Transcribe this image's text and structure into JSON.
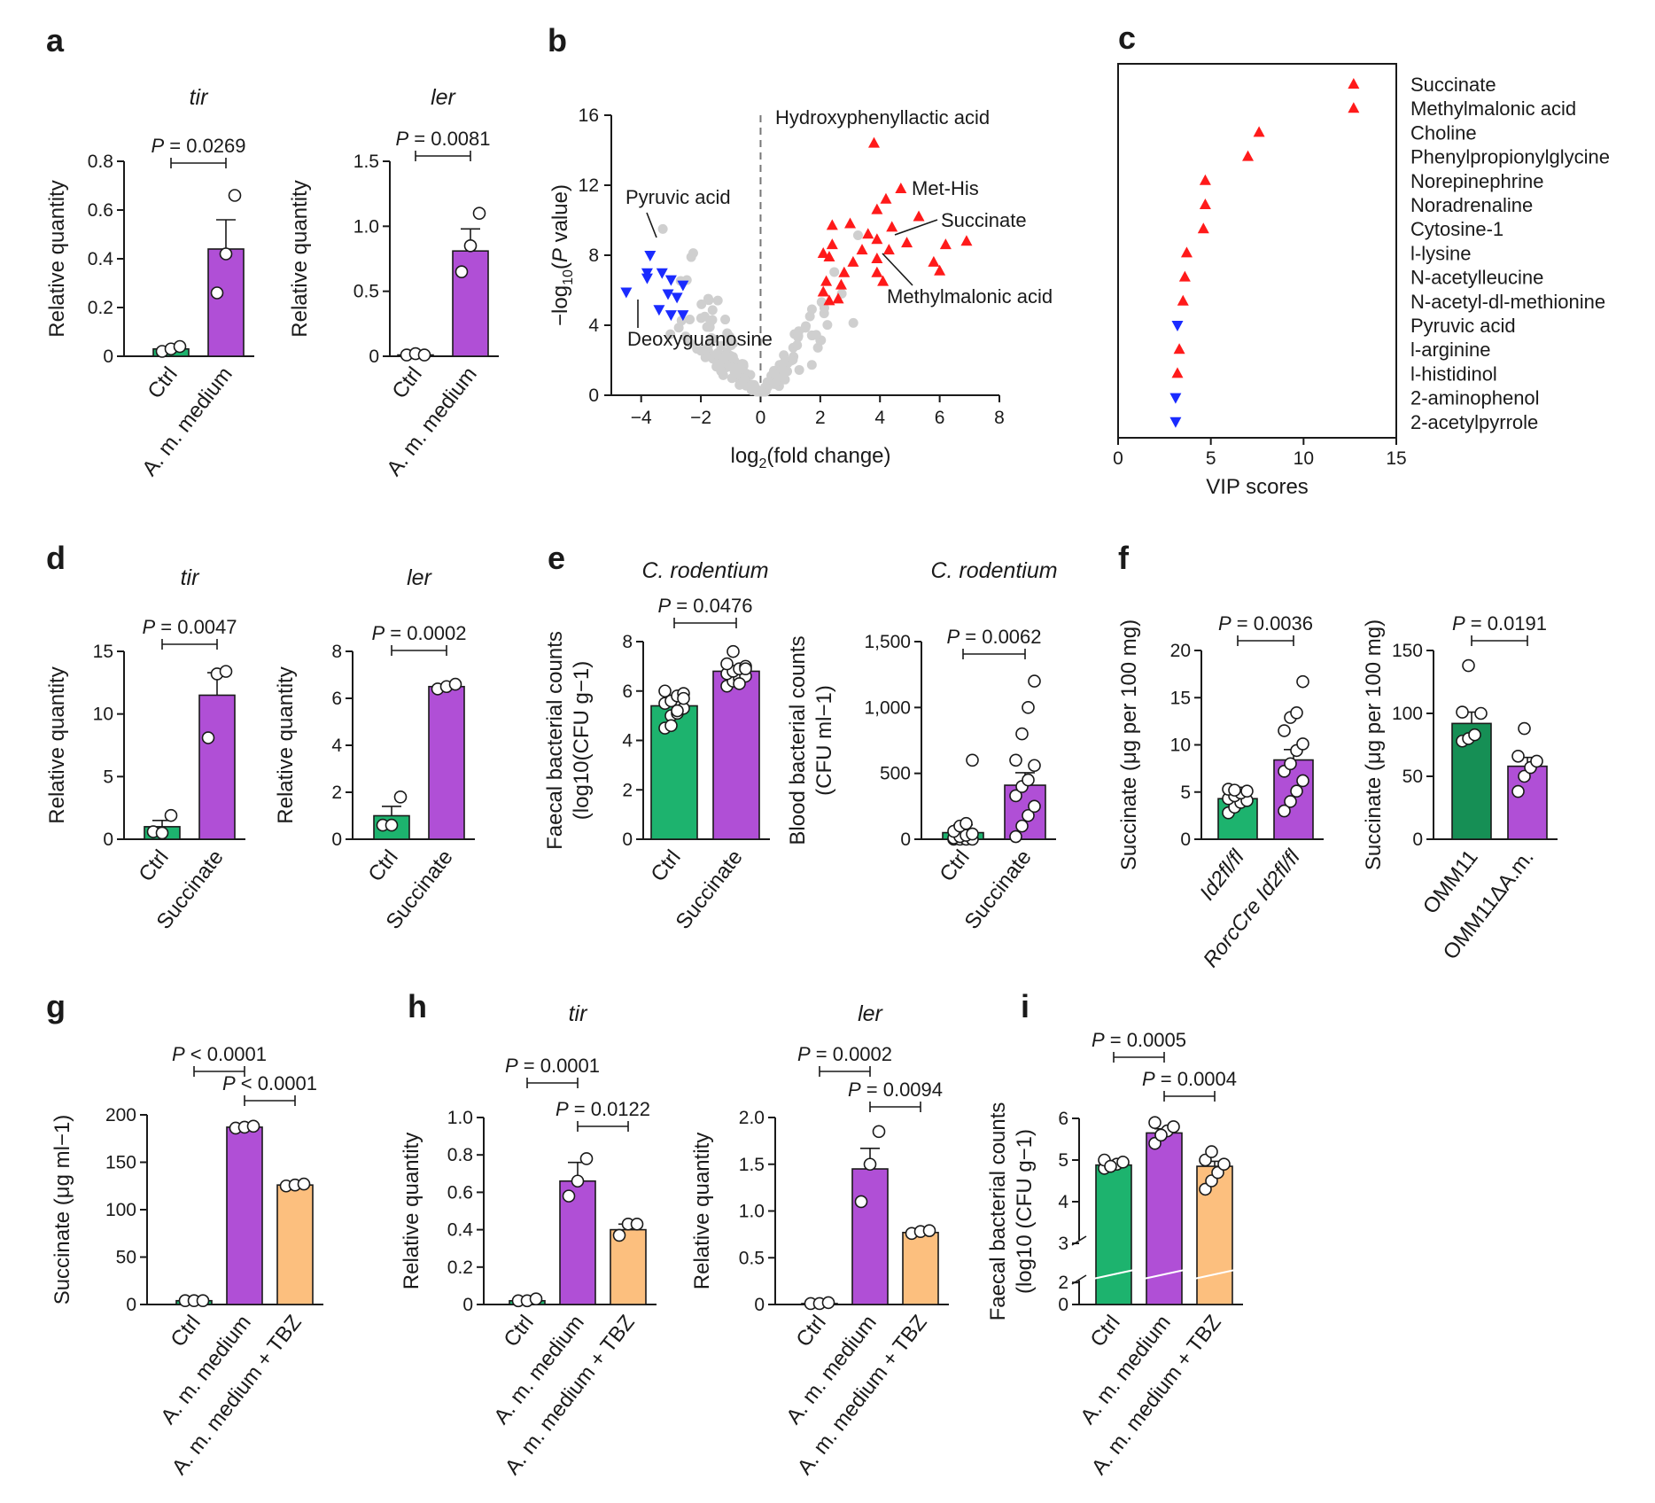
{
  "colors": {
    "green": "#1DB36E",
    "dkgreen": "#168F55",
    "purple": "#B04FD6",
    "orange": "#FCBF7E",
    "red": "#FF1A1A",
    "blue": "#1A2BFF",
    "grey": "#CFCFCF",
    "dash": "#777777"
  },
  "panel_labels": [
    "a",
    "b",
    "c",
    "d",
    "e",
    "f",
    "g",
    "h",
    "i"
  ],
  "chart_data": [
    {
      "id": "a1",
      "type": "bar",
      "panel": "a",
      "title": "tir",
      "title_italic": true,
      "ylabel": "Relative quantity",
      "ylim": [
        0,
        0.8
      ],
      "ticks": [
        0,
        0.2,
        0.4,
        0.6,
        0.8
      ],
      "tick_labels": [
        "0",
        "0.2",
        "0.4",
        "0.6",
        "0.8"
      ],
      "categories": [
        "Ctrl",
        "A. m. medium"
      ],
      "colors": [
        "#1DB36E",
        "#B04FD6"
      ],
      "values": [
        0.03,
        0.44
      ],
      "sem": [
        0.01,
        0.12
      ],
      "points": [
        [
          0.02,
          0.03,
          0.04
        ],
        [
          0.26,
          0.42,
          0.66
        ]
      ],
      "comparisons": [
        {
          "from": 0,
          "to": 1,
          "label": "P = 0.0269"
        }
      ]
    },
    {
      "id": "a2",
      "type": "bar",
      "panel": "a",
      "title": "ler",
      "title_italic": true,
      "ylabel": "Relative quantity",
      "ylim": [
        0,
        1.5
      ],
      "ticks": [
        0,
        0.5,
        1.0,
        1.5
      ],
      "tick_labels": [
        "0",
        "0.5",
        "1.0",
        "1.5"
      ],
      "categories": [
        "Ctrl",
        "A. m. medium"
      ],
      "colors": [
        "#1DB36E",
        "#B04FD6"
      ],
      "values": [
        0.01,
        0.81
      ],
      "sem": [
        0.01,
        0.17
      ],
      "points": [
        [
          0.01,
          0.02,
          0.01
        ],
        [
          0.65,
          0.85,
          1.1
        ]
      ],
      "comparisons": [
        {
          "from": 0,
          "to": 1,
          "label": "P = 0.0081"
        }
      ]
    },
    {
      "id": "b",
      "type": "scatter",
      "panel": "b",
      "xlabel": "log2(fold change)",
      "ylabel": "−log10(P value)",
      "xlim": [
        -5,
        8
      ],
      "ylim": [
        0,
        16
      ],
      "xticks": [
        -4,
        -2,
        0,
        2,
        4,
        6,
        8
      ],
      "xtick_labels": [
        "−4",
        "−2",
        "0",
        "2",
        "4",
        "6",
        "8"
      ],
      "yticks": [
        0,
        4,
        8,
        12,
        16
      ],
      "ytick_labels": [
        "0",
        "4",
        "8",
        "12",
        "16"
      ],
      "up": [
        [
          3.8,
          14.4
        ],
        [
          4.7,
          11.8
        ],
        [
          4.2,
          11.2
        ],
        [
          3.9,
          10.6
        ],
        [
          5.3,
          10.2
        ],
        [
          3.0,
          9.8
        ],
        [
          4.4,
          9.6
        ],
        [
          3.6,
          9.2
        ],
        [
          2.4,
          9.7
        ],
        [
          3.9,
          8.9
        ],
        [
          2.4,
          8.6
        ],
        [
          3.4,
          8.3
        ],
        [
          4.9,
          8.7
        ],
        [
          6.2,
          8.6
        ],
        [
          6.9,
          8.8
        ],
        [
          2.1,
          8.1
        ],
        [
          2.3,
          7.9
        ],
        [
          3.9,
          7.8
        ],
        [
          4.3,
          8.3
        ],
        [
          5.8,
          7.6
        ],
        [
          3.1,
          7.6
        ],
        [
          2.8,
          7.0
        ],
        [
          3.9,
          7.0
        ],
        [
          6.0,
          7.1
        ],
        [
          4.1,
          6.5
        ],
        [
          2.2,
          6.5
        ],
        [
          2.7,
          6.3
        ],
        [
          2.1,
          5.9
        ],
        [
          2.6,
          5.5
        ],
        [
          2.3,
          5.4
        ]
      ],
      "down": [
        [
          -3.7,
          8.0
        ],
        [
          -3.8,
          7.0
        ],
        [
          -3.3,
          7.0
        ],
        [
          -3.0,
          6.6
        ],
        [
          -3.8,
          6.7
        ],
        [
          -2.6,
          6.3
        ],
        [
          -4.5,
          5.9
        ],
        [
          -3.1,
          5.8
        ],
        [
          -2.8,
          5.6
        ],
        [
          -3.4,
          4.9
        ],
        [
          -3.0,
          4.6
        ],
        [
          -2.6,
          4.6
        ]
      ],
      "annotations": [
        "Hydroxyphenyllactic acid",
        "Met-His",
        "Succinate",
        "Methylmalonic acid",
        "Pyruvic acid",
        "Deoxyguanosine"
      ]
    },
    {
      "id": "c",
      "type": "scatter",
      "panel": "c",
      "xlabel": "VIP scores",
      "xlim": [
        0,
        15
      ],
      "xticks": [
        0,
        5,
        10,
        15
      ],
      "xtick_labels": [
        "0",
        "5",
        "10",
        "15"
      ],
      "metabolites": [
        "Succinate",
        "Methylmalonic acid",
        "Choline",
        "Phenylpropionylglycine",
        "Norepinephrine",
        "Noradrenaline",
        "Cytosine-1",
        "l-lysine",
        "N-acetylleucine",
        "N-acetyl-dl-methionine",
        "Pyruvic acid",
        "l-arginine",
        "l-histidinol",
        "2-aminophenol",
        "2-acetylpyrrole"
      ],
      "vip": [
        12.7,
        12.7,
        7.6,
        7.0,
        4.7,
        4.7,
        4.6,
        3.7,
        3.6,
        3.5,
        3.2,
        3.3,
        3.2,
        3.1,
        3.1
      ],
      "direction": [
        "up",
        "up",
        "up",
        "up",
        "up",
        "up",
        "up",
        "up",
        "up",
        "up",
        "down",
        "up",
        "up",
        "down",
        "down"
      ]
    },
    {
      "id": "d1",
      "type": "bar",
      "panel": "d",
      "title": "tir",
      "title_italic": true,
      "ylabel": "Relative quantity",
      "ylim": [
        0,
        15
      ],
      "ticks": [
        0,
        5,
        10,
        15
      ],
      "tick_labels": [
        "0",
        "5",
        "10",
        "15"
      ],
      "categories": [
        "Ctrl",
        "Succinate"
      ],
      "colors": [
        "#1DB36E",
        "#B04FD6"
      ],
      "values": [
        1.0,
        11.5
      ],
      "sem": [
        0.5,
        1.8
      ],
      "points": [
        [
          0.6,
          0.5,
          1.9
        ],
        [
          8.1,
          13.2,
          13.4
        ]
      ],
      "comparisons": [
        {
          "from": 0,
          "to": 1,
          "label": "P = 0.0047"
        }
      ]
    },
    {
      "id": "d2",
      "type": "bar",
      "panel": "d",
      "title": "ler",
      "title_italic": true,
      "ylabel": "Relative quantity",
      "ylim": [
        0,
        8
      ],
      "ticks": [
        0,
        2,
        4,
        6,
        8
      ],
      "tick_labels": [
        "0",
        "2",
        "4",
        "6",
        "8"
      ],
      "categories": [
        "Ctrl",
        "Succinate"
      ],
      "colors": [
        "#1DB36E",
        "#B04FD6"
      ],
      "values": [
        1.0,
        6.5
      ],
      "sem": [
        0.4,
        0.1
      ],
      "points": [
        [
          0.6,
          0.6,
          1.8
        ],
        [
          6.4,
          6.5,
          6.6
        ]
      ],
      "comparisons": [
        {
          "from": 0,
          "to": 1,
          "label": "P = 0.0002"
        }
      ]
    },
    {
      "id": "e1",
      "type": "bar",
      "panel": "e",
      "title": "C. rodentium",
      "title_italic": true,
      "ylabel": "Faecal bacterial counts",
      "ylabel2": "(log10(CFU g−1)",
      "ylim": [
        0,
        8
      ],
      "ticks": [
        0,
        2,
        4,
        6,
        8
      ],
      "tick_labels": [
        "0",
        "2",
        "4",
        "6",
        "8"
      ],
      "categories": [
        "Ctrl",
        "Succinate"
      ],
      "colors": [
        "#1DB36E",
        "#B04FD6"
      ],
      "values": [
        5.4,
        6.8
      ],
      "sem": [
        0.2,
        0.15
      ],
      "points": [
        [
          4.5,
          5.0,
          5.1,
          5.3,
          5.5,
          5.6,
          5.8,
          5.9,
          6.0,
          4.6,
          5.2,
          5.7
        ],
        [
          6.2,
          6.4,
          6.5,
          6.6,
          6.7,
          6.8,
          6.9,
          7.0,
          7.1,
          7.6,
          6.3,
          6.9
        ]
      ],
      "comparisons": [
        {
          "from": 0,
          "to": 1,
          "label": "P = 0.0476"
        }
      ]
    },
    {
      "id": "e2",
      "type": "bar",
      "panel": "e",
      "title": "C. rodentium",
      "title_italic": true,
      "ylabel": "Blood bacterial counts",
      "ylabel2": "(CFU ml−1)",
      "ylim": [
        0,
        1500
      ],
      "ticks": [
        0,
        500,
        1000,
        1500
      ],
      "tick_labels": [
        "0",
        "500",
        "1,000",
        "1,500"
      ],
      "categories": [
        "Ctrl",
        "Succinate"
      ],
      "colors": [
        "#1DB36E",
        "#B04FD6"
      ],
      "values": [
        50,
        410
      ],
      "sem": [
        60,
        95
      ],
      "points": [
        [
          0,
          0,
          0,
          0,
          10,
          20,
          30,
          40,
          60,
          100,
          120,
          600
        ],
        [
          20,
          100,
          180,
          250,
          330,
          400,
          450,
          560,
          600,
          800,
          1000,
          1200
        ]
      ],
      "comparisons": [
        {
          "from": 0,
          "to": 1,
          "label": "P = 0.0062"
        }
      ]
    },
    {
      "id": "f1",
      "type": "bar",
      "panel": "f",
      "ylabel": "Succinate (μg per 100 mg)",
      "ylim": [
        0,
        20
      ],
      "ticks": [
        0,
        5,
        10,
        15,
        20
      ],
      "tick_labels": [
        "0",
        "5",
        "10",
        "15",
        "20"
      ],
      "categories": [
        "Id2fl/fl",
        "RorcCre Id2fl/fl"
      ],
      "colors": [
        "#1DB36E",
        "#B04FD6"
      ],
      "values": [
        4.3,
        8.4
      ],
      "sem": [
        0.4,
        1.1
      ],
      "points": [
        [
          2.8,
          3.4,
          3.9,
          4.1,
          4.3,
          4.6,
          4.9,
          5.1,
          5.3,
          5.2
        ],
        [
          3.0,
          4.0,
          5.1,
          6.2,
          7.2,
          8.0,
          9.4,
          10.1,
          11.5,
          12.9,
          13.4,
          16.7
        ]
      ],
      "comparisons": [
        {
          "from": 0,
          "to": 1,
          "label": "P = 0.0036"
        }
      ]
    },
    {
      "id": "f2",
      "type": "bar",
      "panel": "f",
      "ylabel": "Succinate (μg per 100 mg)",
      "ylim": [
        0,
        150
      ],
      "ticks": [
        0,
        50,
        100,
        150
      ],
      "tick_labels": [
        "0",
        "50",
        "100",
        "150"
      ],
      "categories": [
        "OMM11",
        "OMM11ΔA.m."
      ],
      "colors": [
        "#168F55",
        "#B04FD6"
      ],
      "values": [
        92,
        58
      ],
      "sem": [
        9,
        7
      ],
      "points": [
        [
          78,
          80,
          83,
          100,
          101,
          138
        ],
        [
          38,
          50,
          57,
          62,
          66,
          88
        ]
      ],
      "comparisons": [
        {
          "from": 0,
          "to": 1,
          "label": "P = 0.0191"
        }
      ]
    },
    {
      "id": "g",
      "type": "bar",
      "panel": "g",
      "ylabel": "Succinate (μg ml−1)",
      "ylim": [
        0,
        200
      ],
      "ticks": [
        0,
        50,
        100,
        150,
        200
      ],
      "tick_labels": [
        "0",
        "50",
        "100",
        "150",
        "200"
      ],
      "categories": [
        "Ctrl",
        "A. m. medium",
        "A. m. medium + TBZ"
      ],
      "colors": [
        "#1DB36E",
        "#B04FD6",
        "#FCBF7E"
      ],
      "values": [
        4,
        187,
        126
      ],
      "sem": [
        0,
        1,
        1
      ],
      "points": [
        [
          4,
          4,
          4
        ],
        [
          186,
          187,
          188
        ],
        [
          125,
          126,
          127
        ]
      ],
      "comparisons": [
        {
          "from": 0,
          "to": 1,
          "label": "P < 0.0001"
        },
        {
          "from": 1,
          "to": 2,
          "label": "P < 0.0001"
        }
      ]
    },
    {
      "id": "h1",
      "type": "bar",
      "panel": "h",
      "title": "tir",
      "title_italic": true,
      "ylabel": "Relative quantity",
      "ylim": [
        0,
        1.0
      ],
      "ticks": [
        0,
        0.2,
        0.4,
        0.6,
        0.8,
        1.0
      ],
      "tick_labels": [
        "0",
        "0.2",
        "0.4",
        "0.6",
        "0.8",
        "1.0"
      ],
      "categories": [
        "Ctrl",
        "A. m. medium",
        "A. m. medium + TBZ"
      ],
      "colors": [
        "#1DB36E",
        "#B04FD6",
        "#FCBF7E"
      ],
      "values": [
        0.02,
        0.66,
        0.4
      ],
      "sem": [
        0.005,
        0.1,
        0.03
      ],
      "points": [
        [
          0.02,
          0.02,
          0.03
        ],
        [
          0.58,
          0.66,
          0.78
        ],
        [
          0.37,
          0.43,
          0.43
        ]
      ],
      "comparisons": [
        {
          "from": 0,
          "to": 1,
          "label": "P = 0.0001"
        },
        {
          "from": 1,
          "to": 2,
          "label": "P = 0.0122"
        }
      ]
    },
    {
      "id": "h2",
      "type": "bar",
      "panel": "h",
      "title": "ler",
      "title_italic": true,
      "ylabel": "Relative quantity",
      "ylim": [
        0,
        2.0
      ],
      "ticks": [
        0,
        0.5,
        1.0,
        1.5,
        2.0
      ],
      "tick_labels": [
        "0",
        "0.5",
        "1.0",
        "1.5",
        "2.0"
      ],
      "categories": [
        "Ctrl",
        "A. m. medium",
        "A. m. medium + TBZ"
      ],
      "colors": [
        "#1DB36E",
        "#B04FD6",
        "#FCBF7E"
      ],
      "values": [
        0.01,
        1.45,
        0.77
      ],
      "sem": [
        0.005,
        0.22,
        0.02
      ],
      "points": [
        [
          0.01,
          0.01,
          0.02
        ],
        [
          1.1,
          1.5,
          1.85
        ],
        [
          0.76,
          0.78,
          0.79
        ]
      ],
      "comparisons": [
        {
          "from": 0,
          "to": 1,
          "label": "P = 0.0002"
        },
        {
          "from": 1,
          "to": 2,
          "label": "P = 0.0094"
        }
      ]
    },
    {
      "id": "i",
      "type": "bar",
      "panel": "i",
      "ylabel": "Faecal bacterial counts",
      "ylabel2": "(log10 (CFU g−1)",
      "broken_axis": {
        "lower": [
          0,
          2.5
        ],
        "upper": [
          3,
          6
        ]
      },
      "ticks": [
        0,
        2,
        3,
        4,
        5,
        6
      ],
      "tick_labels": [
        "0",
        "2",
        "3",
        "4",
        "5",
        "6"
      ],
      "categories": [
        "Ctrl",
        "A. m. medium",
        "A. m. medium + TBZ"
      ],
      "colors": [
        "#1DB36E",
        "#B04FD6",
        "#FCBF7E"
      ],
      "values": [
        4.88,
        5.65,
        4.85
      ],
      "sem": [
        0.05,
        0.1,
        0.12
      ],
      "points": [
        [
          4.8,
          4.85,
          4.9,
          4.95,
          5.0,
          4.85
        ],
        [
          5.4,
          5.6,
          5.7,
          5.8,
          5.9,
          5.6
        ],
        [
          4.3,
          4.5,
          4.7,
          4.9,
          5.0,
          5.2
        ]
      ],
      "comparisons": [
        {
          "from": 0,
          "to": 1,
          "label": "P = 0.0005"
        },
        {
          "from": 1,
          "to": 2,
          "label": "P = 0.0004"
        }
      ]
    }
  ]
}
